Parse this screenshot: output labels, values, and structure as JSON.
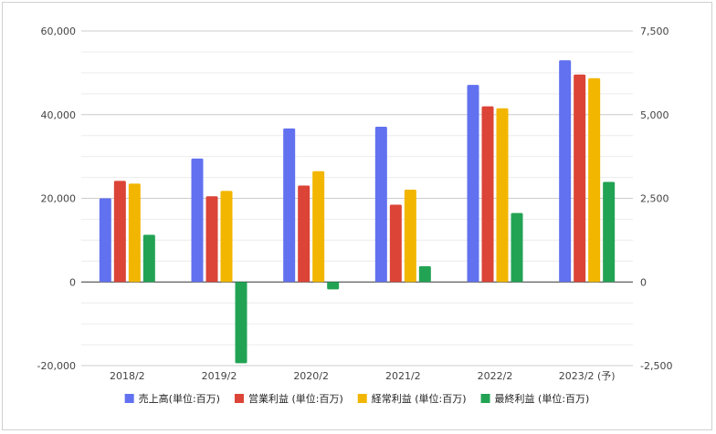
{
  "chart_data": {
    "type": "bar",
    "categories": [
      "2018/2",
      "2019/2",
      "2020/2",
      "2021/2",
      "2022/2",
      "2023/2 (予)"
    ],
    "series": [
      {
        "name": "売上高(単位:百万)",
        "axis": "left",
        "color": "#6171f0",
        "values": [
          20000,
          29500,
          36700,
          37100,
          47100,
          53000
        ]
      },
      {
        "name": "営業利益 (単位:百万)",
        "axis": "right",
        "color": "#db4437",
        "values": [
          3020,
          2560,
          2880,
          2310,
          5250,
          6200
        ]
      },
      {
        "name": "経常利益 (単位:百万)",
        "axis": "right",
        "color": "#f2b600",
        "values": [
          2940,
          2720,
          3310,
          2760,
          5190,
          6090
        ]
      },
      {
        "name": "最終利益 (単位:百万)",
        "axis": "right",
        "color": "#22a354",
        "values": [
          1410,
          -2430,
          -220,
          470,
          2060,
          2990
        ]
      }
    ],
    "left_axis": {
      "ylim": [
        -20000,
        60000
      ],
      "ticks": [
        -20000,
        0,
        20000,
        40000,
        60000
      ],
      "tick_labels": [
        "-20,000",
        "0",
        "20,000",
        "40,000",
        "60,000"
      ]
    },
    "right_axis": {
      "ylim": [
        -2500,
        7500
      ],
      "ticks": [
        -2500,
        0,
        2500,
        5000,
        7500
      ],
      "tick_labels": [
        "-2,500",
        "0",
        "2,500",
        "5,000",
        "7,500"
      ]
    },
    "title": "",
    "xlabel": "",
    "ylabel": "",
    "grid": true,
    "minor_grid": true,
    "legend_position": "bottom"
  }
}
